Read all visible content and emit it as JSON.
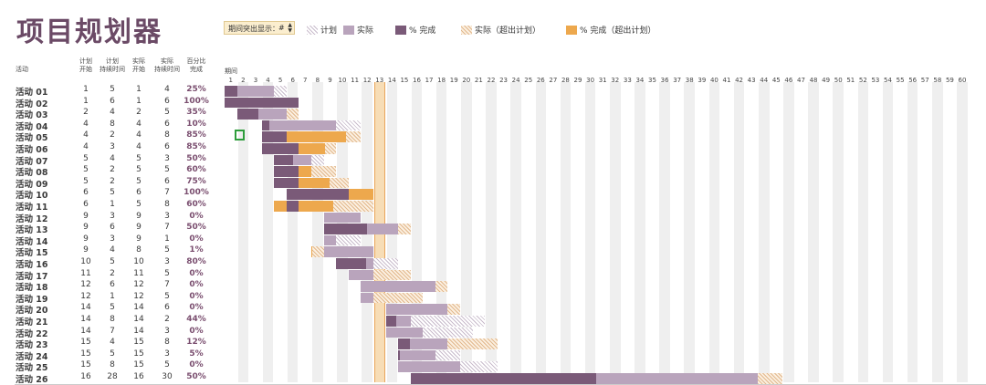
{
  "title": "项目规划器",
  "period_selector": {
    "label": "期间突出显示：",
    "value": "#"
  },
  "legend": [
    {
      "key": "plan",
      "label": "计划",
      "color": "#c9bccc"
    },
    {
      "key": "actual",
      "label": "实际",
      "color": "#b9a4bc"
    },
    {
      "key": "done",
      "label": "% 完成",
      "color": "#7a5a78"
    },
    {
      "key": "over",
      "label": "实际（超出计划）",
      "color": "#e2b98e"
    },
    {
      "key": "overdone",
      "label": "% 完成（超出计划）",
      "color": "#eda84d"
    }
  ],
  "headers": {
    "activity": "活动",
    "plan_start": [
      "计划",
      "开始"
    ],
    "plan_duration": [
      "计划",
      "持续时间"
    ],
    "actual_start": [
      "实际",
      "开始"
    ],
    "actual_duration": [
      "实际",
      "持续时间"
    ],
    "percent": [
      "百分比",
      "完成"
    ],
    "period": "期间"
  },
  "highlight_period": 13,
  "periods": [
    1,
    2,
    3,
    4,
    5,
    6,
    7,
    8,
    9,
    10,
    11,
    12,
    13,
    14,
    15,
    16,
    17,
    18,
    19,
    20,
    21,
    22,
    23,
    24,
    25,
    26,
    27,
    28,
    29,
    30,
    31,
    32,
    33,
    34,
    35,
    36,
    37,
    38,
    39,
    40,
    41,
    42,
    43,
    44,
    45,
    46,
    47,
    48,
    49,
    50,
    51,
    52,
    53,
    54,
    55,
    56,
    57,
    58,
    59,
    60
  ],
  "activities": [
    {
      "name": "活动 01",
      "ps": 1,
      "pd": 5,
      "as": 1,
      "ad": 4,
      "pct": "25%",
      "p": 25
    },
    {
      "name": "活动 02",
      "ps": 1,
      "pd": 6,
      "as": 1,
      "ad": 6,
      "pct": "100%",
      "p": 100
    },
    {
      "name": "活动 03",
      "ps": 2,
      "pd": 4,
      "as": 2,
      "ad": 5,
      "pct": "35%",
      "p": 35
    },
    {
      "name": "活动 04",
      "ps": 4,
      "pd": 8,
      "as": 4,
      "ad": 6,
      "pct": "10%",
      "p": 10
    },
    {
      "name": "活动 05",
      "ps": 4,
      "pd": 2,
      "as": 4,
      "ad": 8,
      "pct": "85%",
      "p": 85
    },
    {
      "name": "活动 06",
      "ps": 4,
      "pd": 3,
      "as": 4,
      "ad": 6,
      "pct": "85%",
      "p": 85
    },
    {
      "name": "活动 07",
      "ps": 5,
      "pd": 4,
      "as": 5,
      "ad": 3,
      "pct": "50%",
      "p": 50
    },
    {
      "name": "活动 08",
      "ps": 5,
      "pd": 2,
      "as": 5,
      "ad": 5,
      "pct": "60%",
      "p": 60
    },
    {
      "name": "活动 09",
      "ps": 5,
      "pd": 2,
      "as": 5,
      "ad": 6,
      "pct": "75%",
      "p": 75
    },
    {
      "name": "活动 10",
      "ps": 6,
      "pd": 5,
      "as": 6,
      "ad": 7,
      "pct": "100%",
      "p": 100
    },
    {
      "name": "活动 11",
      "ps": 6,
      "pd": 1,
      "as": 5,
      "ad": 8,
      "pct": "60%",
      "p": 60
    },
    {
      "name": "活动 12",
      "ps": 9,
      "pd": 3,
      "as": 9,
      "ad": 3,
      "pct": "0%",
      "p": 0
    },
    {
      "name": "活动 13",
      "ps": 9,
      "pd": 6,
      "as": 9,
      "ad": 7,
      "pct": "50%",
      "p": 50
    },
    {
      "name": "活动 14",
      "ps": 9,
      "pd": 3,
      "as": 9,
      "ad": 1,
      "pct": "0%",
      "p": 0
    },
    {
      "name": "活动 15",
      "ps": 9,
      "pd": 4,
      "as": 8,
      "ad": 5,
      "pct": "1%",
      "p": 1
    },
    {
      "name": "活动 16",
      "ps": 10,
      "pd": 5,
      "as": 10,
      "ad": 3,
      "pct": "80%",
      "p": 80
    },
    {
      "name": "活动 17",
      "ps": 11,
      "pd": 2,
      "as": 11,
      "ad": 5,
      "pct": "0%",
      "p": 0
    },
    {
      "name": "活动 18",
      "ps": 12,
      "pd": 6,
      "as": 12,
      "ad": 7,
      "pct": "0%",
      "p": 0
    },
    {
      "name": "活动 19",
      "ps": 12,
      "pd": 1,
      "as": 12,
      "ad": 5,
      "pct": "0%",
      "p": 0
    },
    {
      "name": "活动 20",
      "ps": 14,
      "pd": 5,
      "as": 14,
      "ad": 6,
      "pct": "0%",
      "p": 0
    },
    {
      "name": "活动 21",
      "ps": 14,
      "pd": 8,
      "as": 14,
      "ad": 2,
      "pct": "44%",
      "p": 44
    },
    {
      "name": "活动 22",
      "ps": 14,
      "pd": 7,
      "as": 14,
      "ad": 3,
      "pct": "0%",
      "p": 0
    },
    {
      "name": "活动 23",
      "ps": 15,
      "pd": 4,
      "as": 15,
      "ad": 8,
      "pct": "12%",
      "p": 12
    },
    {
      "name": "活动 24",
      "ps": 15,
      "pd": 5,
      "as": 15,
      "ad": 3,
      "pct": "5%",
      "p": 5
    },
    {
      "name": "活动 25",
      "ps": 15,
      "pd": 8,
      "as": 15,
      "ad": 5,
      "pct": "0%",
      "p": 0
    },
    {
      "name": "活动 26",
      "ps": 16,
      "pd": 28,
      "as": 16,
      "ad": 30,
      "pct": "50%",
      "p": 50
    }
  ]
}
